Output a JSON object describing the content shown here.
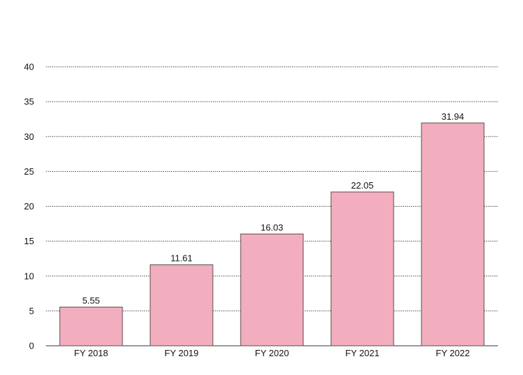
{
  "chart_data": {
    "type": "bar",
    "categories": [
      "FY 2018",
      "FY 2019",
      "FY 2020",
      "FY 2021",
      "FY 2022"
    ],
    "values": [
      5.55,
      11.61,
      16.03,
      22.05,
      31.94
    ],
    "value_labels": [
      "5.55",
      "11.61",
      "16.03",
      "22.05",
      "31.94"
    ],
    "yticks": [
      "0",
      "5",
      "10",
      "15",
      "20",
      "25",
      "30",
      "35",
      "40"
    ],
    "ylim": [
      0,
      40
    ],
    "grid": true,
    "legend": "none",
    "bar_color": "#f2aebf",
    "bar_edge_color": "#5a4a4a"
  }
}
